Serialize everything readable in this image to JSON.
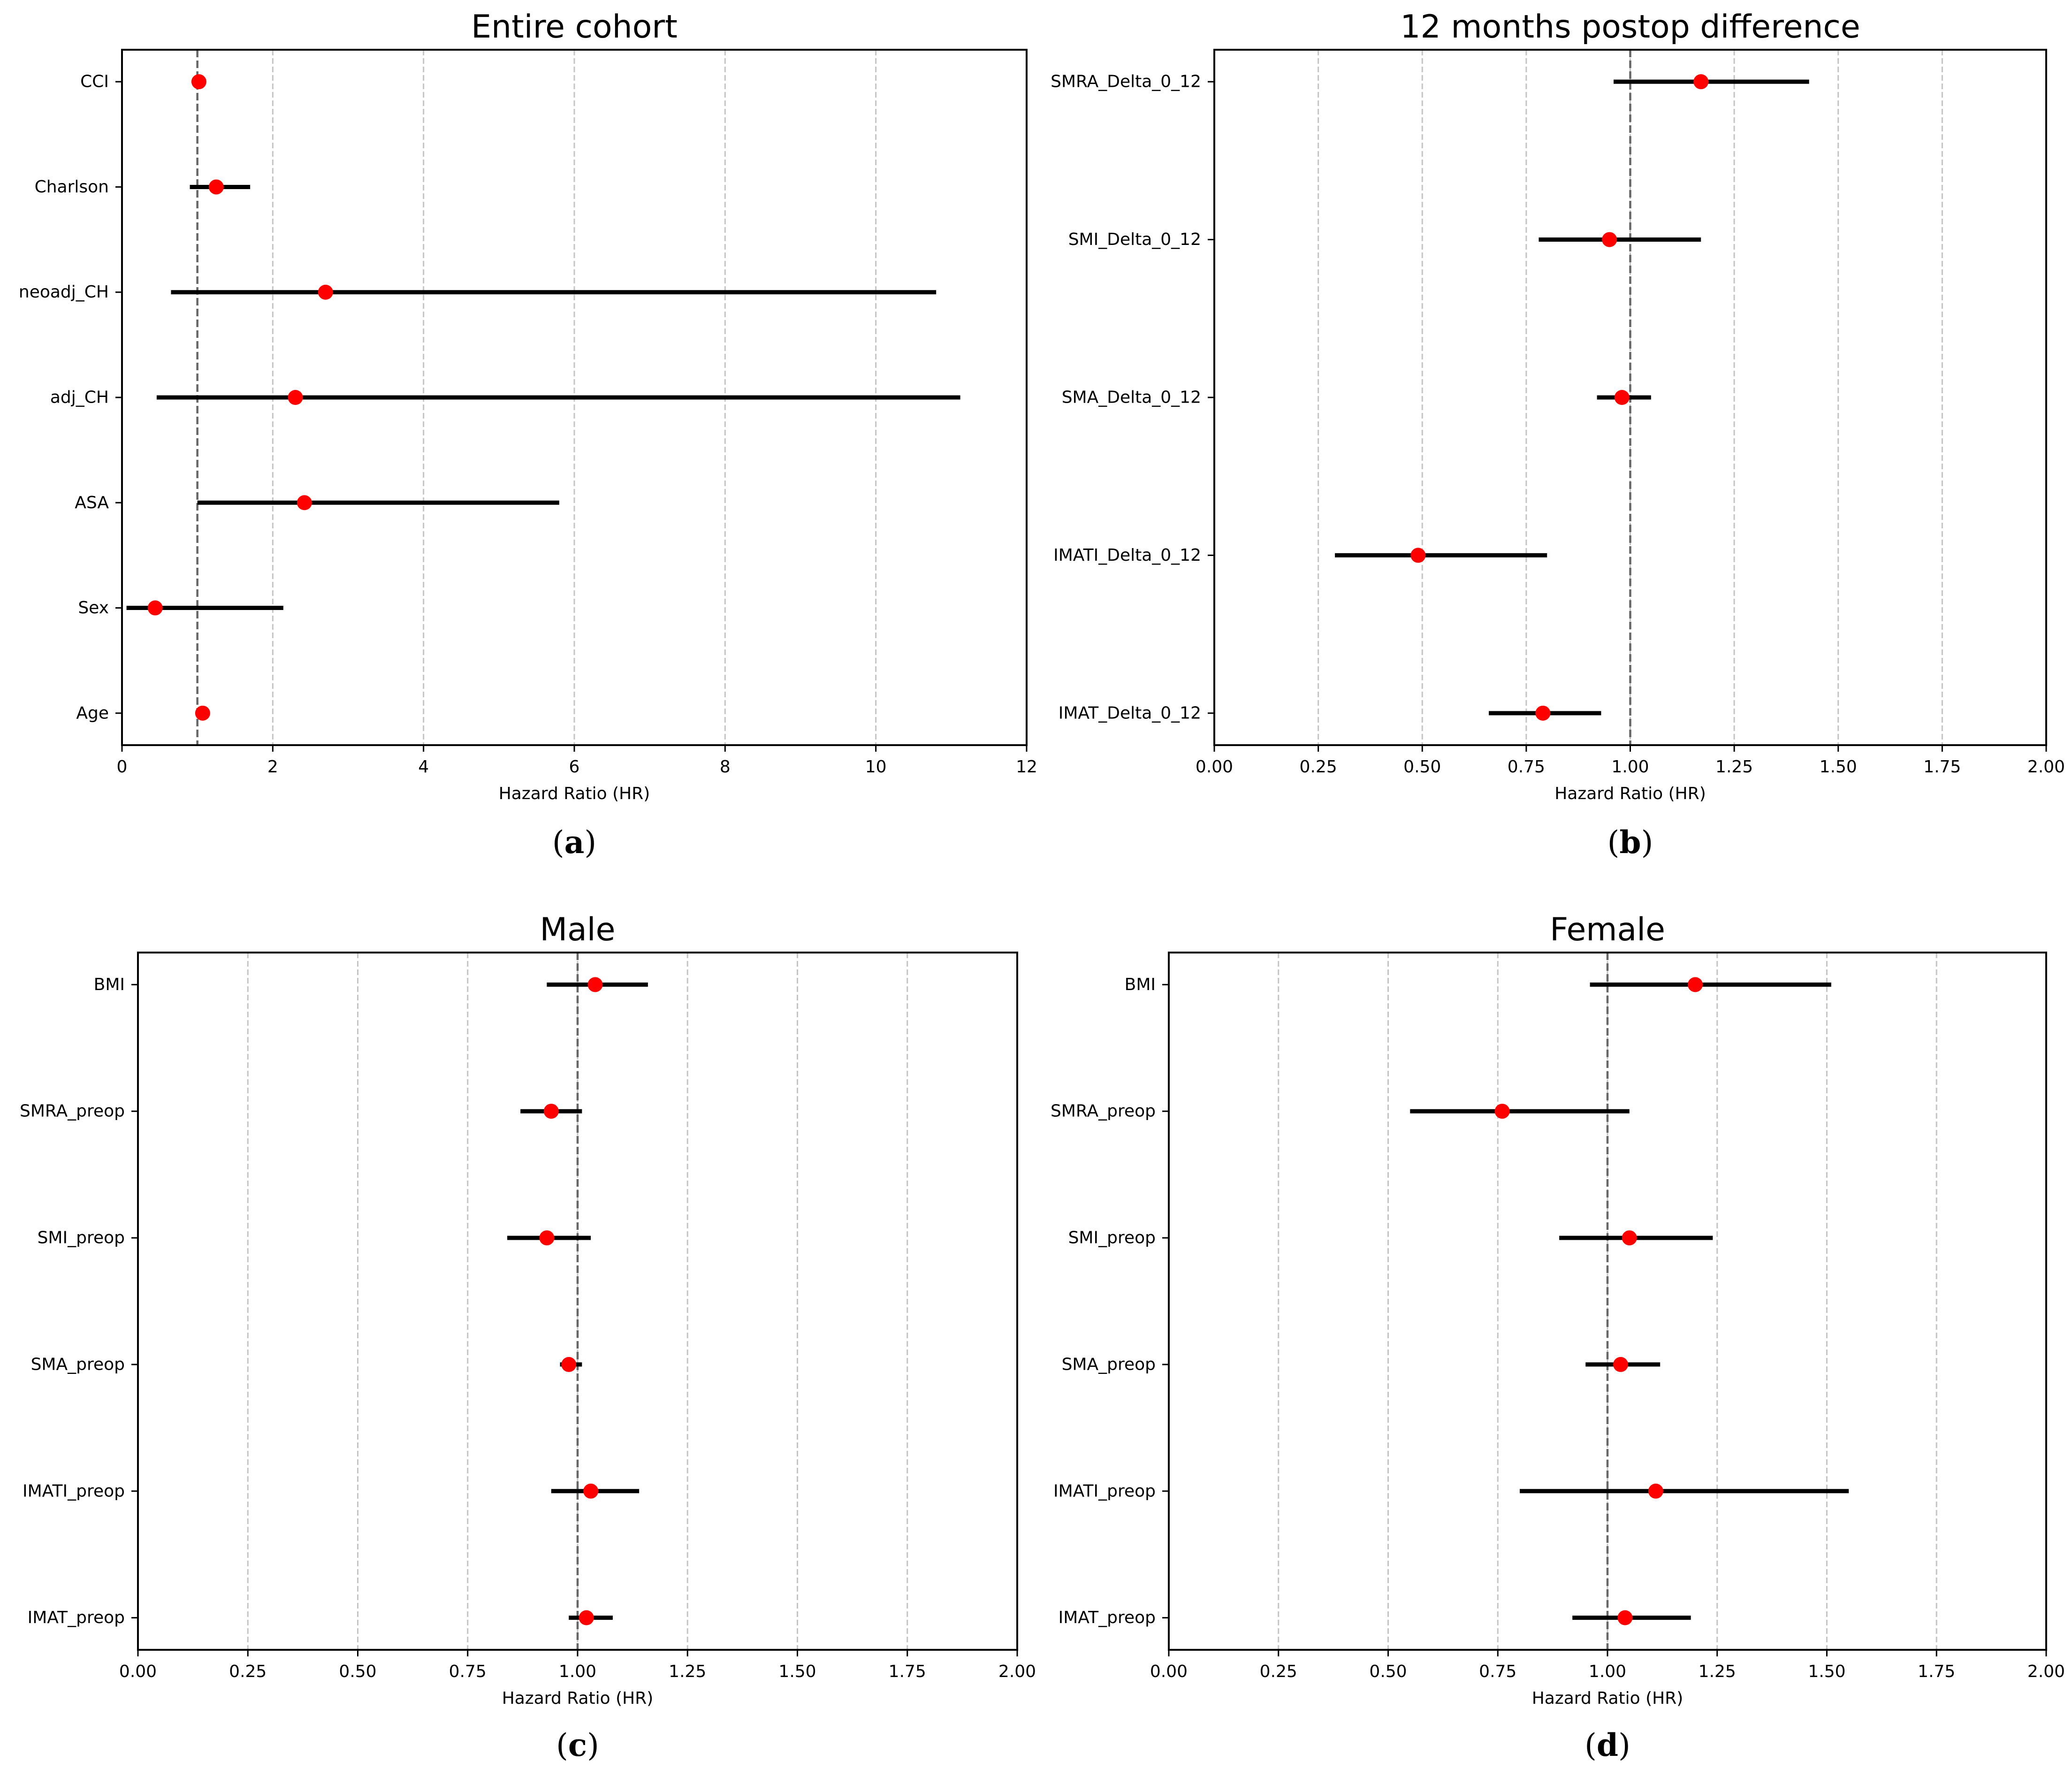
{
  "chart_data": [
    {
      "type": "forest",
      "title": "Entire cohort",
      "xlabel": "Hazard Ratio (HR)",
      "xlim": [
        0,
        12
      ],
      "xticks": [
        0,
        2,
        4,
        6,
        8,
        10,
        12
      ],
      "xtick_labels": [
        "0",
        "2",
        "4",
        "6",
        "8",
        "10",
        "12"
      ],
      "reference_line": 1.0,
      "grid": "vertical dashed",
      "subfigure_label": "(a)",
      "subfigure_letter": "a",
      "categories": [
        "CCI",
        "Charlson",
        "neoadj_CH",
        "adj_CH",
        "ASA",
        "Sex",
        "Age"
      ],
      "hr": [
        1.02,
        1.25,
        2.7,
        2.3,
        2.42,
        0.44,
        1.07
      ],
      "ci_low": [
        1.0,
        0.9,
        0.65,
        0.46,
        1.0,
        0.06,
        1.02
      ],
      "ci_high": [
        1.04,
        1.7,
        10.8,
        11.12,
        5.8,
        2.14,
        1.12
      ]
    },
    {
      "type": "forest",
      "title": "12 months postop difference",
      "xlabel": "Hazard Ratio (HR)",
      "xlim": [
        0,
        2
      ],
      "xticks": [
        0,
        0.25,
        0.5,
        0.75,
        1.0,
        1.25,
        1.5,
        1.75,
        2.0
      ],
      "xtick_labels": [
        "0.00",
        "0.25",
        "0.50",
        "0.75",
        "1.00",
        "1.25",
        "1.50",
        "1.75",
        "2.00"
      ],
      "reference_line": 1.0,
      "grid": "vertical dashed",
      "subfigure_label": "(b)",
      "subfigure_letter": "b",
      "categories": [
        "SMRA_Delta_0_12",
        "SMI_Delta_0_12",
        "SMA_Delta_0_12",
        "IMATI_Delta_0_12",
        "IMAT_Delta_0_12"
      ],
      "hr": [
        1.17,
        0.95,
        0.98,
        0.49,
        0.79
      ],
      "ci_low": [
        0.96,
        0.78,
        0.92,
        0.29,
        0.66
      ],
      "ci_high": [
        1.43,
        1.17,
        1.05,
        0.8,
        0.93
      ]
    },
    {
      "type": "forest",
      "title": "Male",
      "xlabel": "Hazard Ratio (HR)",
      "xlim": [
        0,
        2
      ],
      "xticks": [
        0,
        0.25,
        0.5,
        0.75,
        1.0,
        1.25,
        1.5,
        1.75,
        2.0
      ],
      "xtick_labels": [
        "0.00",
        "0.25",
        "0.50",
        "0.75",
        "1.00",
        "1.25",
        "1.50",
        "1.75",
        "2.00"
      ],
      "reference_line": 1.0,
      "grid": "vertical dashed",
      "subfigure_label": "(c)",
      "subfigure_letter": "c",
      "categories": [
        "BMI",
        "SMRA_preop",
        "SMI_preop",
        "SMA_preop",
        "IMATI_preop",
        "IMAT_preop"
      ],
      "hr": [
        1.04,
        0.94,
        0.93,
        0.98,
        1.03,
        1.02
      ],
      "ci_low": [
        0.93,
        0.87,
        0.84,
        0.96,
        0.94,
        0.98
      ],
      "ci_high": [
        1.16,
        1.01,
        1.03,
        1.01,
        1.14,
        1.08
      ]
    },
    {
      "type": "forest",
      "title": "Female",
      "xlabel": "Hazard Ratio (HR)",
      "xlim": [
        0,
        2
      ],
      "xticks": [
        0,
        0.25,
        0.5,
        0.75,
        1.0,
        1.25,
        1.5,
        1.75,
        2.0
      ],
      "xtick_labels": [
        "0.00",
        "0.25",
        "0.50",
        "0.75",
        "1.00",
        "1.25",
        "1.50",
        "1.75",
        "2.00"
      ],
      "reference_line": 1.0,
      "grid": "vertical dashed",
      "subfigure_label": "(d)",
      "subfigure_letter": "d",
      "categories": [
        "BMI",
        "SMRA_preop",
        "SMI_preop",
        "SMA_preop",
        "IMATI_preop",
        "IMAT_preop"
      ],
      "hr": [
        1.2,
        0.76,
        1.05,
        1.03,
        1.11,
        1.04
      ],
      "ci_low": [
        0.96,
        0.55,
        0.89,
        0.95,
        0.8,
        0.92
      ],
      "ci_high": [
        1.51,
        1.05,
        1.24,
        1.12,
        1.55,
        1.19
      ]
    }
  ],
  "colors": {
    "point": "#ff0000",
    "ci": "#000000",
    "reference": "#666666",
    "grid": "#c4c4c4"
  }
}
